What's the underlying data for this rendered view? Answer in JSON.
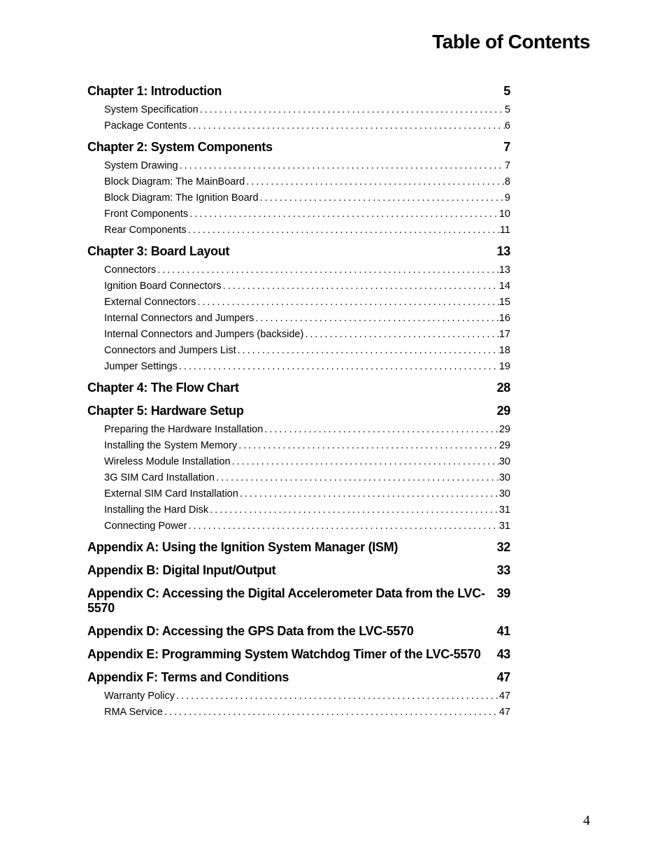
{
  "title": "Table of Contents",
  "page_number": "4",
  "sections": [
    {
      "heading": "Chapter 1:  Introduction",
      "page": "5",
      "entries": [
        {
          "title": "System Specification",
          "page": "5"
        },
        {
          "title": "Package Contents",
          "page": "6"
        }
      ]
    },
    {
      "heading": "Chapter 2:  System Components",
      "page": "7",
      "entries": [
        {
          "title": "System Drawing",
          "page": "7"
        },
        {
          "title": "Block Diagram: The MainBoard",
          "page": "8"
        },
        {
          "title": "Block Diagram: The Ignition Board",
          "page": "9"
        },
        {
          "title": "Front Components",
          "page": "10"
        },
        {
          "title": "Rear Components",
          "page": "11"
        }
      ]
    },
    {
      "heading": "Chapter 3: Board Layout",
      "page": "13",
      "entries": [
        {
          "title": "Connectors",
          "page": "13"
        },
        {
          "title": "Ignition Board Connectors",
          "page": "14"
        },
        {
          "title": "External Connectors",
          "page": "15"
        },
        {
          "title": "Internal Connectors and Jumpers",
          "page": "16"
        },
        {
          "title": "Internal Connectors and Jumpers (backside)",
          "page": "17"
        },
        {
          "title": "Connectors and Jumpers List",
          "page": "18"
        },
        {
          "title": "Jumper Settings",
          "page": "19"
        }
      ]
    },
    {
      "heading": "Chapter 4:  The Flow Chart",
      "page": "28",
      "entries": []
    },
    {
      "heading": "Chapter 5: Hardware Setup",
      "page": "29",
      "entries": [
        {
          "title": "Preparing the Hardware Installation",
          "page": "29"
        },
        {
          "title": "Installing the System Memory",
          "page": "29"
        },
        {
          "title": "Wireless Module Installation ",
          "page": "30"
        },
        {
          "title": "3G SIM Card Installation",
          "page": "30"
        },
        {
          "title": "External SIM Card Installation",
          "page": "30"
        },
        {
          "title": "Installing the Hard Disk",
          "page": "31"
        },
        {
          "title": "Connecting Power",
          "page": "31"
        }
      ]
    },
    {
      "heading": "Appendix A: Using the Ignition System Manager (ISM)",
      "page": "32",
      "entries": []
    },
    {
      "heading": "Appendix B: Digital Input/Output",
      "page": "33",
      "entries": []
    },
    {
      "heading": "Appendix C: Accessing the Digital Accelerometer Data from the LVC-5570",
      "page": "39",
      "entries": []
    },
    {
      "heading": "Appendix D: Accessing the GPS Data from the LVC-5570",
      "page": "41",
      "entries": []
    },
    {
      "heading": "Appendix E: Programming System Watchdog Timer of the LVC-5570",
      "page": "43",
      "entries": []
    },
    {
      "heading": "Appendix F: Terms and Conditions",
      "page": "47",
      "entries": [
        {
          "title": "Warranty Policy",
          "page": "47"
        },
        {
          "title": "RMA Service",
          "page": "47"
        }
      ]
    }
  ]
}
